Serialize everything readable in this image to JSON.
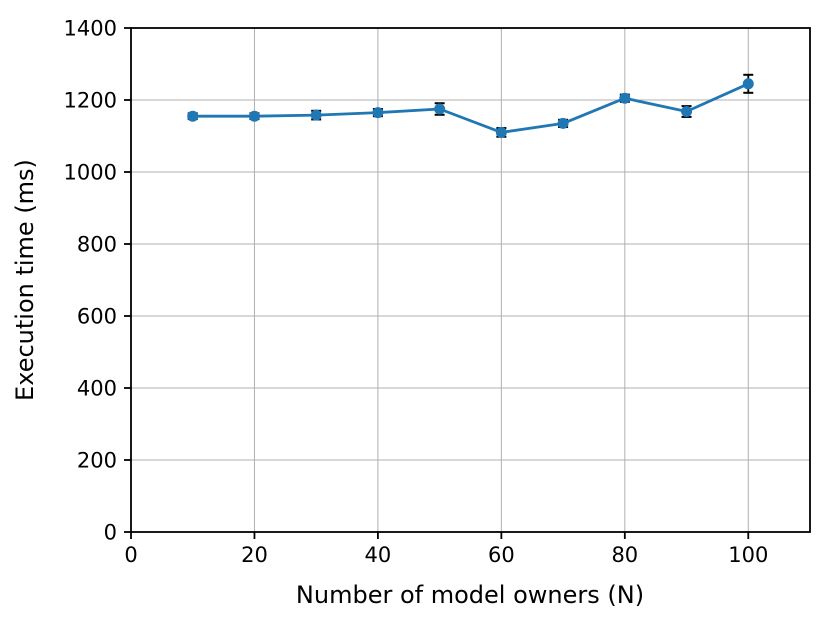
{
  "chart_data": {
    "type": "line",
    "title": "",
    "xlabel": "Number of model owners (N)",
    "ylabel": "Execution time (ms)",
    "x": [
      10,
      20,
      30,
      40,
      50,
      60,
      70,
      80,
      90,
      100
    ],
    "series": [
      {
        "name": "Execution time",
        "values": [
          1155,
          1155,
          1158,
          1165,
          1175,
          1110,
          1135,
          1205,
          1168,
          1245
        ],
        "yerr": [
          8,
          8,
          12,
          10,
          16,
          12,
          10,
          10,
          15,
          25
        ]
      }
    ],
    "xlim": [
      0,
      110
    ],
    "ylim": [
      0,
      1400
    ],
    "xticks": [
      0,
      20,
      40,
      60,
      80,
      100
    ],
    "yticks": [
      0,
      200,
      400,
      600,
      800,
      1000,
      1200,
      1400
    ],
    "grid": true,
    "grid_on": "both",
    "legend": "none",
    "marker": "circle",
    "colors": {
      "line": "#1f77b4",
      "marker": "#1f77b4",
      "errorbar": "#000000",
      "grid": "#b0b0b0",
      "spine": "#000000",
      "text": "#000000",
      "background": "#ffffff"
    }
  }
}
